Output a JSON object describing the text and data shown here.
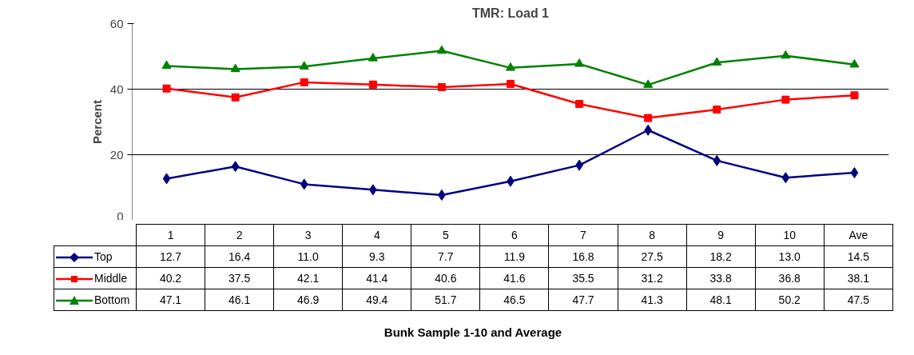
{
  "chart_data": {
    "type": "line",
    "title": "TMR: Load 1",
    "annotations": [
      "Bunk Sample 1-10 and Average"
    ],
    "ylabel": "Percent",
    "categories": [
      "1",
      "2",
      "3",
      "4",
      "5",
      "6",
      "7",
      "8",
      "9",
      "10",
      "Ave"
    ],
    "series": [
      {
        "name": "Top",
        "color": "#000080",
        "marker": "diamond",
        "values": [
          12.7,
          16.4,
          11.0,
          9.3,
          7.7,
          11.9,
          16.8,
          27.5,
          18.2,
          13.0,
          14.5
        ],
        "value_labels": [
          "12.7",
          "16.4",
          "11.0",
          "9.3",
          "7.7",
          "11.9",
          "16.8",
          "27.5",
          "18.2",
          "13.0",
          "14.5"
        ]
      },
      {
        "name": "Middle",
        "color": "#ff0000",
        "marker": "square",
        "values": [
          40.2,
          37.5,
          42.1,
          41.4,
          40.6,
          41.6,
          35.5,
          31.2,
          33.8,
          36.8,
          38.1
        ],
        "value_labels": [
          "40.2",
          "37.5",
          "42.1",
          "41.4",
          "40.6",
          "41.6",
          "35.5",
          "31.2",
          "33.8",
          "36.8",
          "38.1"
        ]
      },
      {
        "name": "Bottom",
        "color": "#008000",
        "marker": "triangle",
        "values": [
          47.1,
          46.1,
          46.9,
          49.4,
          51.7,
          46.5,
          47.7,
          41.3,
          48.1,
          50.2,
          47.5
        ],
        "value_labels": [
          "47.1",
          "46.1",
          "46.9",
          "49.4",
          "51.7",
          "46.5",
          "47.7",
          "41.3",
          "48.1",
          "50.2",
          "47.5"
        ]
      }
    ],
    "ylim": [
      0,
      60
    ],
    "yticks": [
      0,
      20,
      40,
      60
    ],
    "grid": "y",
    "legend": "bottom"
  }
}
